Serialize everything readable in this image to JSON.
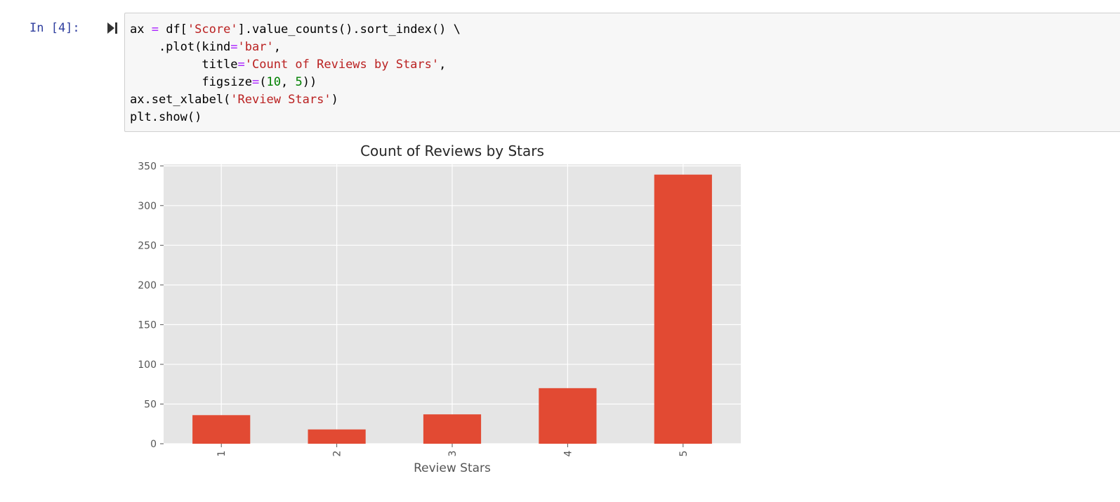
{
  "cell": {
    "prompt": "In [4]:",
    "code_lines": [
      [
        {
          "t": "ax "
        },
        {
          "t": "=",
          "c": "kw-op"
        },
        {
          "t": " df["
        },
        {
          "t": "'Score'",
          "c": "str"
        },
        {
          "t": "].value_counts().sort_index() \\"
        }
      ],
      [
        {
          "t": "    .plot(kind"
        },
        {
          "t": "=",
          "c": "kw-op"
        },
        {
          "t": "'bar'",
          "c": "str"
        },
        {
          "t": ","
        }
      ],
      [
        {
          "t": "          title"
        },
        {
          "t": "=",
          "c": "kw-op"
        },
        {
          "t": "'Count of Reviews by Stars'",
          "c": "str"
        },
        {
          "t": ","
        }
      ],
      [
        {
          "t": "          figsize"
        },
        {
          "t": "=",
          "c": "kw-op"
        },
        {
          "t": "("
        },
        {
          "t": "10",
          "c": "num"
        },
        {
          "t": ", "
        },
        {
          "t": "5",
          "c": "num"
        },
        {
          "t": "))"
        }
      ],
      [
        {
          "t": "ax.set_xlabel("
        },
        {
          "t": "'Review Stars'",
          "c": "str"
        },
        {
          "t": ")"
        }
      ],
      [
        {
          "t": "plt.show()"
        }
      ]
    ]
  },
  "colors": {
    "bar": "#e24a33",
    "plot_bg": "#e5e5e5",
    "grid": "#ffffff",
    "tick_text": "#555555",
    "title_text": "#262626"
  },
  "chart_data": {
    "type": "bar",
    "title": "Count of Reviews by Stars",
    "xlabel": "Review Stars",
    "ylabel": "",
    "categories": [
      "1",
      "2",
      "3",
      "4",
      "5"
    ],
    "values": [
      36,
      18,
      37,
      70,
      339
    ],
    "ylim": [
      0,
      352
    ],
    "yticks": [
      0,
      50,
      100,
      150,
      200,
      250,
      300,
      350
    ],
    "grid": true,
    "legend": "none"
  }
}
